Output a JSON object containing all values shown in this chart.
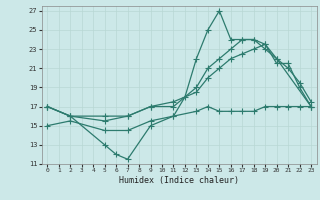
{
  "xlabel": "Humidex (Indice chaleur)",
  "bg_color": "#cce8e8",
  "line_color": "#2d7b6e",
  "grid_color": "#b8d8d4",
  "xlim": [
    -0.5,
    23.5
  ],
  "ylim": [
    11,
    27.5
  ],
  "xticks": [
    0,
    1,
    2,
    3,
    4,
    5,
    6,
    7,
    8,
    9,
    10,
    11,
    12,
    13,
    14,
    15,
    16,
    17,
    18,
    19,
    20,
    21,
    22,
    23
  ],
  "yticks": [
    11,
    13,
    15,
    17,
    19,
    21,
    23,
    25,
    27
  ],
  "line1_x": [
    0,
    2,
    5,
    6,
    7,
    9,
    11,
    12,
    13,
    14,
    15,
    16,
    17,
    18,
    19,
    20,
    23
  ],
  "line1_y": [
    17,
    16,
    13,
    12,
    11.5,
    15,
    16,
    18,
    22,
    25,
    27,
    24,
    24,
    24,
    23,
    22,
    17
  ],
  "line2_x": [
    0,
    2,
    5,
    7,
    9,
    11,
    13,
    14,
    15,
    16,
    17,
    18,
    19,
    20,
    21,
    22,
    23
  ],
  "line2_y": [
    17,
    16,
    16,
    16,
    17,
    17,
    19,
    21,
    22,
    23,
    24,
    24,
    23.5,
    21.5,
    21.5,
    19,
    17
  ],
  "line3_x": [
    0,
    2,
    5,
    7,
    9,
    11,
    13,
    14,
    15,
    16,
    17,
    18,
    19,
    20,
    21,
    22,
    23
  ],
  "line3_y": [
    17,
    16,
    15.5,
    16,
    17,
    17.5,
    18.5,
    20,
    21,
    22,
    22.5,
    23,
    23.5,
    22,
    21,
    19.5,
    17.5
  ],
  "line4_x": [
    0,
    2,
    5,
    7,
    9,
    11,
    13,
    14,
    15,
    16,
    17,
    18,
    19,
    20,
    21,
    22,
    23
  ],
  "line4_y": [
    15,
    15.5,
    14.5,
    14.5,
    15.5,
    16,
    16.5,
    17,
    16.5,
    16.5,
    16.5,
    16.5,
    17,
    17,
    17,
    17,
    17
  ]
}
